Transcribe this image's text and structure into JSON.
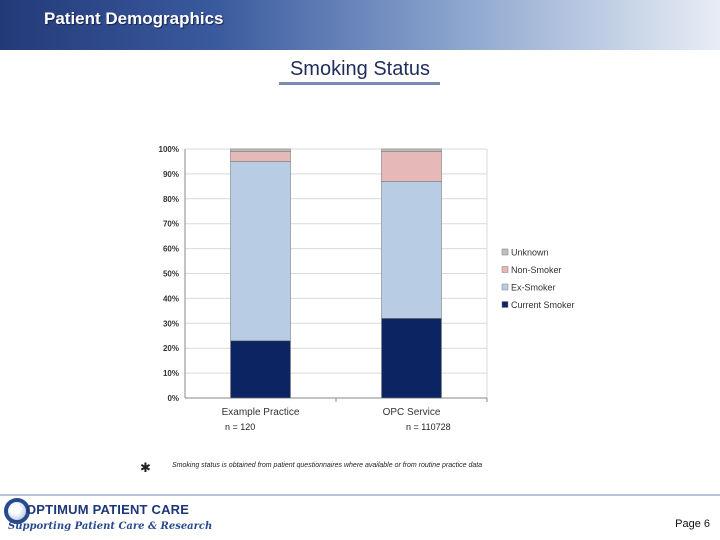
{
  "header": {
    "title": "Patient Demographics"
  },
  "slide": {
    "title": "Smoking Status"
  },
  "chart_data": {
    "type": "bar",
    "stacked": true,
    "percent": true,
    "categories": [
      "Example Practice",
      "OPC Service"
    ],
    "series": [
      {
        "name": "Current Smoker",
        "values": [
          23,
          32
        ],
        "color": "#0c2461"
      },
      {
        "name": "Ex-Smoker",
        "values": [
          72,
          55
        ],
        "color": "#b8cce4"
      },
      {
        "name": "Non-Smoker",
        "values": [
          4,
          12
        ],
        "color": "#e6b9b8"
      },
      {
        "name": "Unknown",
        "values": [
          1,
          1
        ],
        "color": "#bfbfbf"
      }
    ],
    "legend_order": [
      "Unknown",
      "Non-Smoker",
      "Ex-Smoker",
      "Current Smoker"
    ],
    "y_ticks": [
      "0%",
      "10%",
      "20%",
      "30%",
      "40%",
      "50%",
      "60%",
      "70%",
      "80%",
      "90%",
      "100%"
    ],
    "ylim": [
      0,
      100
    ],
    "grid": true,
    "legend_position": "right",
    "n_labels": [
      "n = 120",
      "n = 110728"
    ]
  },
  "footnote": {
    "marker": "✱",
    "text": "Smoking status is obtained from patient questionnaires where available or from routine practice data"
  },
  "footer": {
    "logo_line1": "OPTIMUM PATIENT CARE",
    "logo_line2": "Supporting Patient Care & Research",
    "page": "Page 6"
  }
}
